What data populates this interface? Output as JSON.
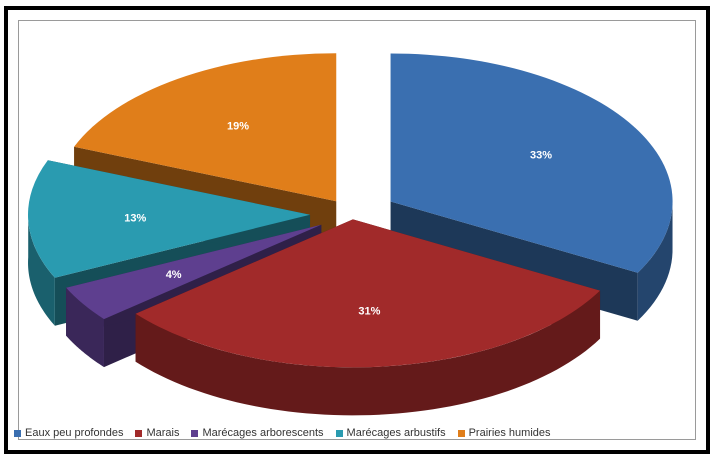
{
  "chart_data": {
    "type": "pie",
    "three_d": true,
    "exploded": true,
    "legend_position": "bottom",
    "slices": [
      {
        "name": "Eaux peu profondes",
        "value": 33,
        "label": "33%",
        "color": "#3a6fb0"
      },
      {
        "name": "Marais",
        "value": 31,
        "label": "31%",
        "color": "#a12a2a"
      },
      {
        "name": "Marécages arborescents",
        "value": 4,
        "label": "4%",
        "color": "#5e3f8f"
      },
      {
        "name": "Marécages arbustifs",
        "value": 13,
        "label": "13%",
        "color": "#2a9bb0"
      },
      {
        "name": "Prairies humides",
        "value": 19,
        "label": "19%",
        "color": "#e07e1a"
      }
    ]
  }
}
